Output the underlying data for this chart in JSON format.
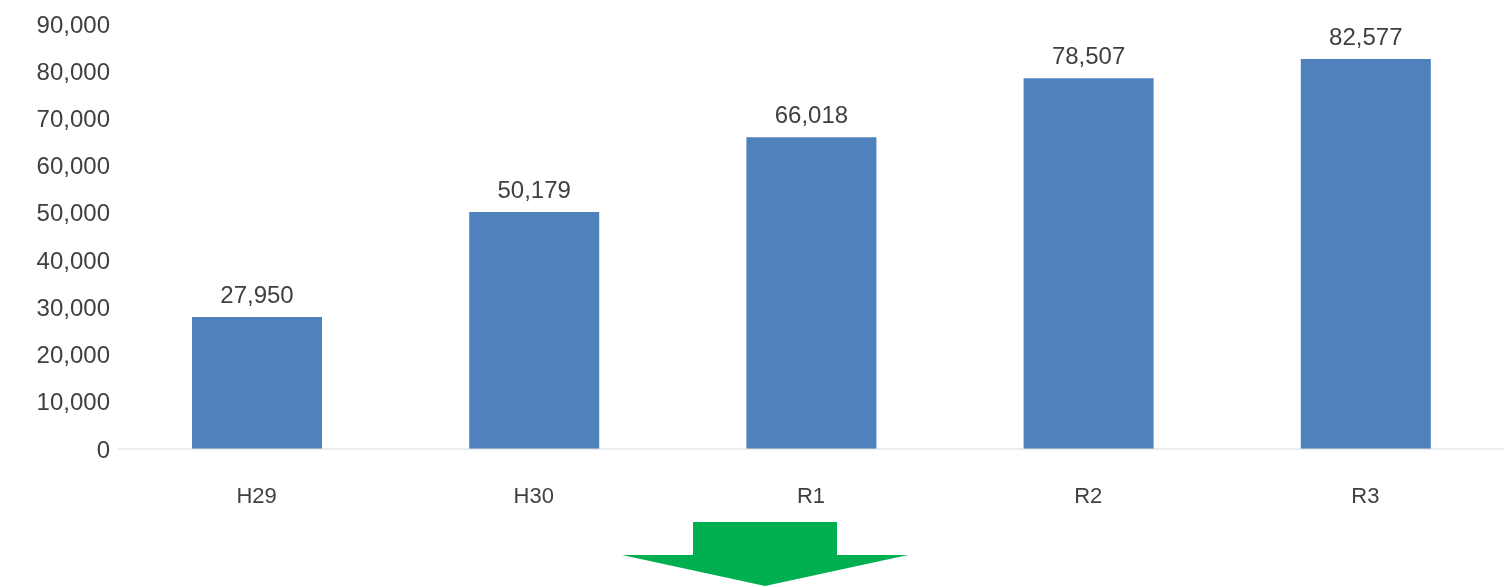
{
  "chart_data": {
    "type": "bar",
    "categories": [
      "H29",
      "H30",
      "R1",
      "R2",
      "R3"
    ],
    "values": [
      27950,
      50179,
      66018,
      78507,
      82577
    ],
    "color": "#4f81bd",
    "value_labels": [
      "27,950",
      "50,179",
      "66,018",
      "78,507",
      "82,577"
    ],
    "ylim": [
      0,
      90000
    ],
    "yticks": [
      0,
      {
        "value": 10000,
        "label": "10,000"
      },
      {
        "value": 20000,
        "label": "20,000"
      },
      {
        "value": 30000,
        "label": "30,000"
      },
      {
        "value": 40000,
        "label": "40,000"
      },
      {
        "value": 50000,
        "label": "50,000"
      },
      {
        "value": 60000,
        "label": "60,000"
      },
      {
        "value": 70000,
        "label": "70,000"
      },
      {
        "value": 80000,
        "label": "80,000"
      },
      {
        "value": 90000,
        "label": "90,000"
      }
    ],
    "grid": false
  }
}
